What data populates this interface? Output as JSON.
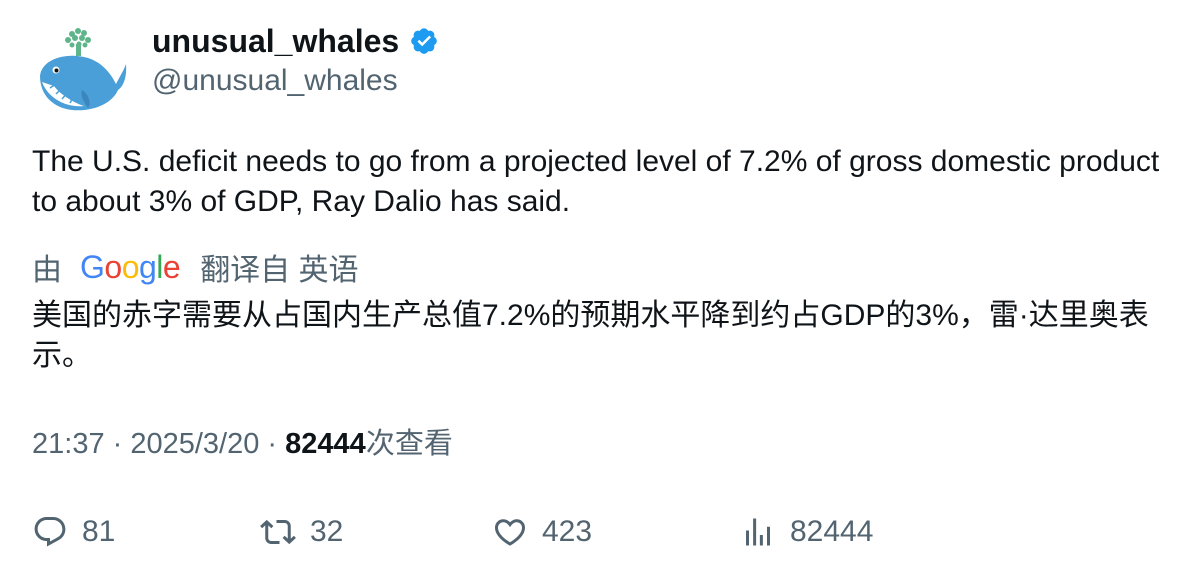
{
  "author": {
    "display_name": "unusual_whales",
    "handle": "@unusual_whales",
    "verified": true,
    "verified_color": "#1d9bf0",
    "avatar_icon": "whale-icon"
  },
  "tweet": {
    "text": "The U.S. deficit needs to go from a projected level of 7.2% of gross domestic product to about 3% of GDP, Ray Dalio has said."
  },
  "translation": {
    "by_label": "由",
    "provider": "Google",
    "from_label": "翻译自 英语",
    "text": "美国的赤字需要从占国内生产总值7.2%的预期水平降到约占GDP的3%，雷·达里奥表示。"
  },
  "meta": {
    "time": "21:37",
    "separator": " · ",
    "date": "2025/3/20",
    "views_count": "82444",
    "views_label": "次查看"
  },
  "actions": {
    "reply_count": "81",
    "retweet_count": "32",
    "like_count": "423",
    "views_count": "82444"
  },
  "colors": {
    "text_primary": "#0f1419",
    "text_secondary": "#536471",
    "google_blue": "#4285F4",
    "google_red": "#EA4335",
    "google_yellow": "#FBBC05",
    "google_green": "#34A853"
  }
}
